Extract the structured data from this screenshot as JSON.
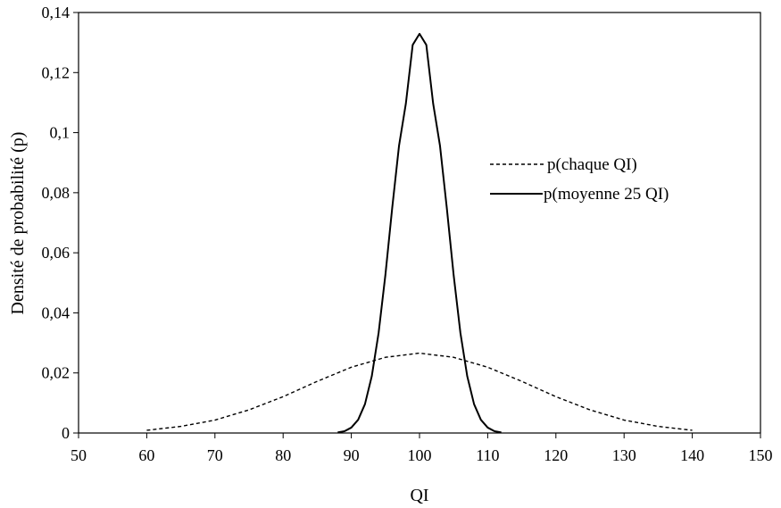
{
  "chart_data": {
    "type": "line",
    "title": "",
    "xlabel": "QI",
    "ylabel": "Densité de probabilité (p)",
    "xlim": [
      50,
      150
    ],
    "ylim": [
      0,
      0.14
    ],
    "x_ticks": [
      50,
      60,
      70,
      80,
      90,
      100,
      110,
      120,
      130,
      140,
      150
    ],
    "x_tick_labels": [
      "50",
      "60",
      "70",
      "80",
      "90",
      "100",
      "110",
      "120",
      "130",
      "140",
      "150"
    ],
    "y_ticks": [
      0,
      0.02,
      0.04,
      0.06,
      0.08,
      0.1,
      0.12,
      0.14
    ],
    "y_tick_labels": [
      "0",
      "0,02",
      "0,04",
      "0,06",
      "0,08",
      "0,1",
      "0,12",
      "0,14"
    ],
    "grid": false,
    "legend_position": "right",
    "series": [
      {
        "name": "p(chaque QI)",
        "style": "dashed",
        "color": "#000000",
        "x": [
          60,
          65,
          70,
          75,
          80,
          85,
          90,
          95,
          100,
          105,
          110,
          115,
          120,
          125,
          130,
          135,
          140
        ],
        "y": [
          0.0009,
          0.0022,
          0.0043,
          0.0077,
          0.0121,
          0.0172,
          0.0219,
          0.0252,
          0.0266,
          0.0252,
          0.0219,
          0.0172,
          0.0121,
          0.0077,
          0.0043,
          0.0022,
          0.0009
        ]
      },
      {
        "name": "p(moyenne 25 QI)",
        "style": "solid",
        "color": "#000000",
        "x": [
          88,
          89,
          90,
          91,
          92,
          93,
          94,
          95,
          96,
          97,
          98,
          99,
          100,
          101,
          102,
          103,
          104,
          105,
          106,
          107,
          108,
          109,
          110,
          111,
          112
        ],
        "y": [
          0.0002,
          0.0006,
          0.0018,
          0.0044,
          0.0096,
          0.0189,
          0.0333,
          0.0527,
          0.075,
          0.0957,
          0.1097,
          0.1292,
          0.1329,
          0.1292,
          0.1097,
          0.0957,
          0.075,
          0.0527,
          0.0333,
          0.0189,
          0.0096,
          0.0044,
          0.0018,
          0.0006,
          0.0002
        ]
      }
    ]
  }
}
